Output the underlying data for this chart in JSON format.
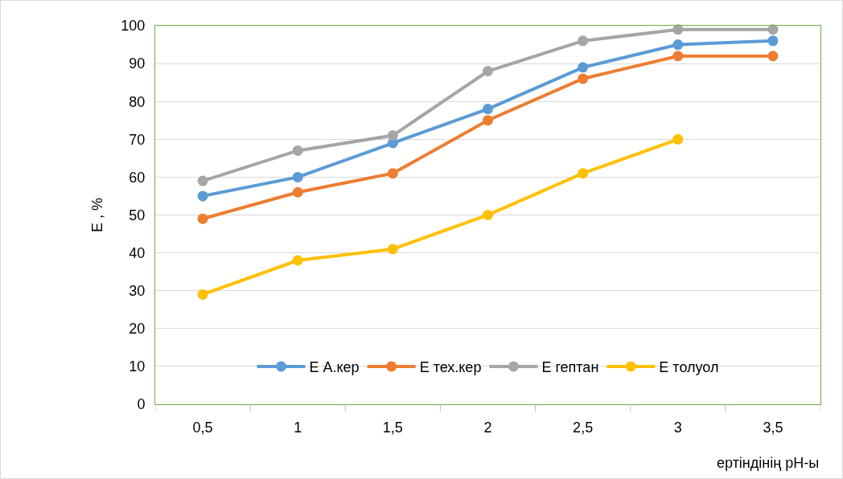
{
  "chart_data": {
    "type": "line",
    "xlabel": "ертіндінің pH-ы",
    "ylabel": "Е , %",
    "categories": [
      "0,5",
      "1",
      "1,5",
      "2",
      "2,5",
      "3",
      "3,5"
    ],
    "series": [
      {
        "name": "Е А.кер",
        "color": "#5b9bd5",
        "values": [
          55,
          60,
          69,
          78,
          89,
          95,
          96
        ]
      },
      {
        "name": "Е тех.кер",
        "color": "#ed7d31",
        "values": [
          49,
          56,
          61,
          75,
          86,
          92,
          92
        ]
      },
      {
        "name": "Е гептан",
        "color": "#a5a5a5",
        "values": [
          59,
          67,
          71,
          88,
          96,
          99,
          99
        ]
      },
      {
        "name": "Е толуол",
        "color": "#ffc000",
        "values": [
          29,
          38,
          41,
          50,
          61,
          70,
          null
        ]
      }
    ],
    "ylim": [
      0,
      100
    ],
    "yticks": [
      0,
      10,
      20,
      30,
      40,
      50,
      60,
      70,
      80,
      90,
      100
    ],
    "grid": "y",
    "legend": "bottom",
    "marker": "circle",
    "line_style": "solid"
  }
}
